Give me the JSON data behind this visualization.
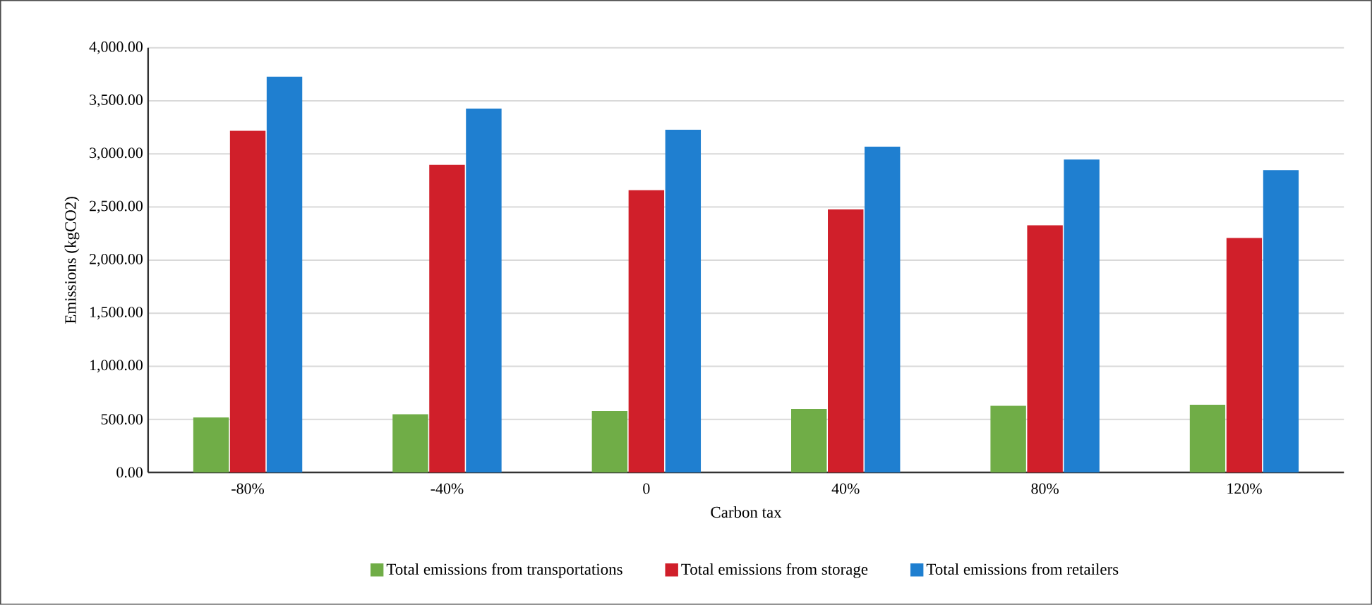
{
  "chart_data": {
    "type": "bar",
    "xlabel": "Carbon tax",
    "ylabel": "Emissions (kgCO2)",
    "categories": [
      "-80%",
      "-40%",
      "0",
      "40%",
      "80%",
      "120%"
    ],
    "series": [
      {
        "name": "Total emissions from transportations",
        "color": "#70ad47",
        "values": [
          510,
          540,
          570,
          590,
          620,
          630
        ]
      },
      {
        "name": "Total emissions from storage",
        "color": "#d01f2a",
        "values": [
          3210,
          2890,
          2650,
          2470,
          2320,
          2200
        ]
      },
      {
        "name": "Total emissions from retailers",
        "color": "#1f7fd0",
        "values": [
          3720,
          3420,
          3220,
          3060,
          2940,
          2840
        ]
      }
    ],
    "ylim": [
      0,
      4000
    ],
    "yticks": [
      {
        "value": 0,
        "label": "0.00"
      },
      {
        "value": 500,
        "label": "500.00"
      },
      {
        "value": 1000,
        "label": "1,000.00"
      },
      {
        "value": 1500,
        "label": "1,500.00"
      },
      {
        "value": 2000,
        "label": "2,000.00"
      },
      {
        "value": 2500,
        "label": "2,500.00"
      },
      {
        "value": 3000,
        "label": "3,000.00"
      },
      {
        "value": 3500,
        "label": "3,500.00"
      },
      {
        "value": 4000,
        "label": "4,000.00"
      }
    ],
    "grid": "y",
    "legend": "bottom"
  }
}
